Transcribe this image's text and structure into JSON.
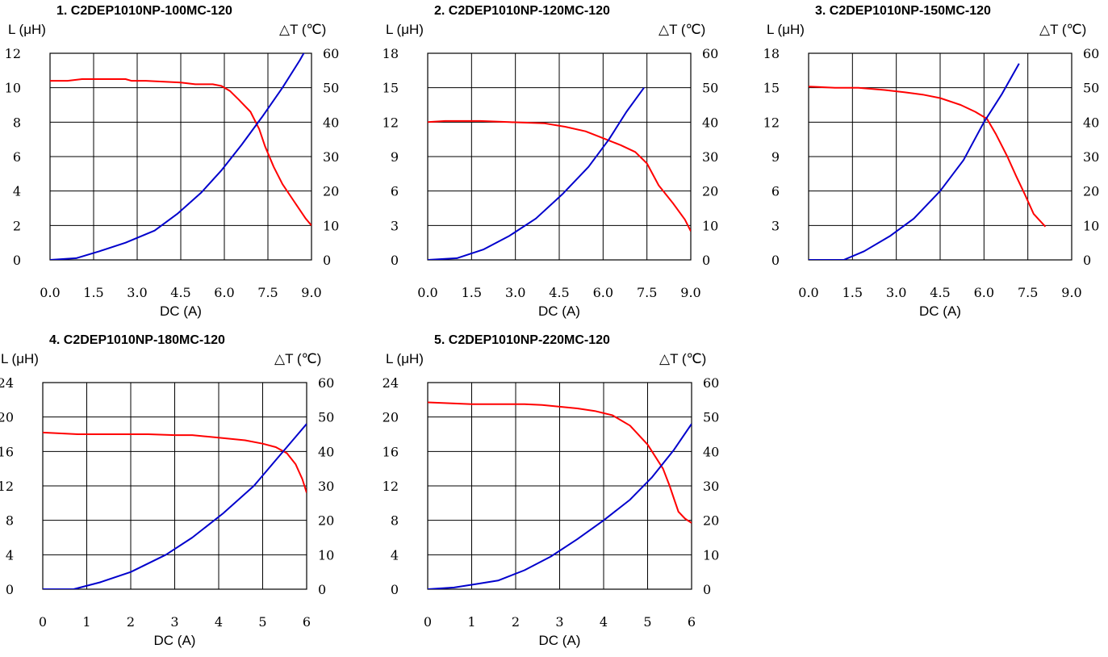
{
  "colors": {
    "inductance": "#ff0000",
    "temperature": "#0000cc",
    "grid": "#000000"
  },
  "chart_data": [
    {
      "type": "line",
      "title": "1. C2DEP1010NP-100MC-120",
      "xlabel": "DC (A)",
      "ylabel_left": "L (μH)",
      "ylabel_right": "△T (℃)",
      "xlim": [
        0,
        9
      ],
      "ylim_left": [
        0,
        12
      ],
      "ylim_right": [
        0,
        60
      ],
      "x_ticks": [
        0.0,
        1.5,
        3.0,
        4.5,
        6.0,
        7.5,
        9.0
      ],
      "x_tick_labels": [
        "0.0",
        "1.5",
        "3.0",
        "4.5",
        "6.0",
        "7.5",
        "9.0"
      ],
      "y_left_ticks": [
        0,
        2,
        4,
        6,
        8,
        10,
        12
      ],
      "y_left_tick_labels": [
        "0",
        "2",
        "4",
        "6",
        "8",
        "10",
        "12"
      ],
      "y_right_ticks": [
        0,
        10,
        20,
        30,
        40,
        50,
        60
      ],
      "y_right_tick_labels": [
        "0",
        "10",
        "20",
        "30",
        "40",
        "50",
        "60"
      ],
      "grid": true,
      "series": [
        {
          "axis": "left",
          "color": "#ff0000",
          "x": [
            0,
            0.6,
            1.1,
            2.0,
            2.6,
            2.8,
            3.3,
            4.5,
            5.0,
            5.6,
            5.9,
            6.2,
            6.5,
            6.9,
            7.2,
            7.4,
            7.7,
            8.0,
            8.4,
            8.8,
            9.0
          ],
          "y": [
            10.4,
            10.4,
            10.5,
            10.5,
            10.5,
            10.4,
            10.4,
            10.3,
            10.2,
            10.2,
            10.1,
            9.8,
            9.3,
            8.6,
            7.6,
            6.6,
            5.4,
            4.4,
            3.4,
            2.4,
            2.0
          ]
        },
        {
          "axis": "right",
          "color": "#0000cc",
          "x": [
            0,
            0.9,
            1.7,
            2.6,
            3.6,
            4.4,
            5.2,
            5.9,
            6.6,
            7.3,
            8.0,
            8.6,
            9.0
          ],
          "y": [
            0,
            0.5,
            2.5,
            5,
            8.5,
            13.5,
            19.5,
            26,
            33.5,
            41.5,
            50,
            58,
            64
          ]
        }
      ]
    },
    {
      "type": "line",
      "title": "2. C2DEP1010NP-120MC-120",
      "xlabel": "DC (A)",
      "ylabel_left": "L (μH)",
      "ylabel_right": "△T (℃)",
      "xlim": [
        0,
        9
      ],
      "ylim_left": [
        0,
        18
      ],
      "ylim_right": [
        0,
        60
      ],
      "x_ticks": [
        0.0,
        1.5,
        3.0,
        4.5,
        6.0,
        7.5,
        9.0
      ],
      "x_tick_labels": [
        "0.0",
        "1.5",
        "3.0",
        "4.5",
        "6.0",
        "7.5",
        "9.0"
      ],
      "y_left_ticks": [
        0,
        3,
        6,
        9,
        12,
        15,
        18
      ],
      "y_left_tick_labels": [
        "0",
        "3",
        "6",
        "9",
        "12",
        "15",
        "18"
      ],
      "y_right_ticks": [
        0,
        10,
        20,
        30,
        40,
        50,
        60
      ],
      "y_right_tick_labels": [
        "0",
        "10",
        "20",
        "30",
        "40",
        "50",
        "60"
      ],
      "grid": true,
      "series": [
        {
          "axis": "left",
          "color": "#ff0000",
          "x": [
            0,
            0.6,
            1.8,
            2.8,
            4.0,
            4.7,
            5.4,
            6.0,
            6.6,
            7.1,
            7.5,
            7.9,
            8.4,
            8.8,
            9.0
          ],
          "y": [
            12.0,
            12.1,
            12.1,
            12.0,
            11.9,
            11.6,
            11.2,
            10.6,
            10.0,
            9.4,
            8.4,
            6.5,
            4.9,
            3.5,
            2.5
          ]
        },
        {
          "axis": "right",
          "color": "#0000cc",
          "x": [
            0,
            1.0,
            1.9,
            2.8,
            3.7,
            4.6,
            5.5,
            6.2,
            6.8,
            7.4
          ],
          "y": [
            0,
            0.5,
            3,
            7,
            12,
            19,
            27,
            35,
            43,
            50
          ]
        }
      ]
    },
    {
      "type": "line",
      "title": "3. C2DEP1010NP-150MC-120",
      "xlabel": "DC (A)",
      "ylabel_left": "L (μH)",
      "ylabel_right": "△T (℃)",
      "xlim": [
        0,
        9
      ],
      "ylim_left": [
        0,
        18
      ],
      "ylim_right": [
        0,
        60
      ],
      "x_ticks": [
        0.0,
        1.5,
        3.0,
        4.5,
        6.0,
        7.5,
        9.0
      ],
      "x_tick_labels": [
        "0.0",
        "1.5",
        "3.0",
        "4.5",
        "6.0",
        "7.5",
        "9.0"
      ],
      "y_left_ticks": [
        0,
        3,
        6,
        9,
        12,
        15,
        18
      ],
      "y_left_tick_labels": [
        "0",
        "3",
        "6",
        "9",
        "12",
        "15",
        "18"
      ],
      "y_right_ticks": [
        0,
        10,
        20,
        30,
        40,
        50,
        60
      ],
      "y_right_tick_labels": [
        "0",
        "10",
        "20",
        "30",
        "40",
        "50",
        "60"
      ],
      "grid": true,
      "series": [
        {
          "axis": "left",
          "color": "#ff0000",
          "x": [
            0,
            0.9,
            1.7,
            2.6,
            3.3,
            3.9,
            4.5,
            5.2,
            5.7,
            6.1,
            6.4,
            6.8,
            7.1,
            7.4,
            7.7,
            8.1
          ],
          "y": [
            15.1,
            15.0,
            15.0,
            14.8,
            14.6,
            14.4,
            14.1,
            13.5,
            12.9,
            12.3,
            11.0,
            9.0,
            7.3,
            5.7,
            4.0,
            2.9
          ]
        },
        {
          "axis": "right",
          "color": "#0000cc",
          "x": [
            0,
            1.2,
            1.9,
            2.8,
            3.6,
            4.5,
            5.3,
            6.0,
            6.6,
            7.2
          ],
          "y": [
            0,
            0,
            2.5,
            7,
            12,
            20,
            29,
            40,
            48,
            57
          ]
        }
      ]
    },
    {
      "type": "line",
      "title": "4. C2DEP1010NP-180MC-120",
      "xlabel": "DC (A)",
      "ylabel_left": "L (μH)",
      "ylabel_right": "△T (℃)",
      "xlim": [
        0,
        6
      ],
      "ylim_left": [
        0,
        24
      ],
      "ylim_right": [
        0,
        60
      ],
      "x_ticks": [
        0,
        1,
        2,
        3,
        4,
        5,
        6
      ],
      "x_tick_labels": [
        "0",
        "1",
        "2",
        "3",
        "4",
        "5",
        "6"
      ],
      "y_left_ticks": [
        0,
        4,
        8,
        12,
        16,
        20,
        24
      ],
      "y_left_tick_labels": [
        "0",
        "4",
        "8",
        "12",
        "16",
        "20",
        "24"
      ],
      "y_right_ticks": [
        0,
        10,
        20,
        30,
        40,
        50,
        60
      ],
      "y_right_tick_labels": [
        "0",
        "10",
        "20",
        "30",
        "40",
        "50",
        "60"
      ],
      "grid": true,
      "series": [
        {
          "axis": "left",
          "color": "#ff0000",
          "x": [
            0,
            0.8,
            1.6,
            2.4,
            3.0,
            3.4,
            4.0,
            4.6,
            5.0,
            5.3,
            5.55,
            5.75,
            5.9,
            6.0
          ],
          "y": [
            18.2,
            18.0,
            18.0,
            18.0,
            17.9,
            17.9,
            17.6,
            17.3,
            16.9,
            16.5,
            15.8,
            14.5,
            12.8,
            11.2
          ]
        },
        {
          "axis": "right",
          "color": "#0000cc",
          "x": [
            0,
            0.7,
            1.3,
            2.0,
            2.8,
            3.4,
            4.1,
            4.8,
            5.3,
            5.8,
            6.0
          ],
          "y": [
            0,
            0,
            2,
            5,
            10,
            15,
            22,
            30,
            37.5,
            45,
            48
          ]
        }
      ]
    },
    {
      "type": "line",
      "title": "5. C2DEP1010NP-220MC-120",
      "xlabel": "DC (A)",
      "ylabel_left": "L (μH)",
      "ylabel_right": "△T (℃)",
      "xlim": [
        0,
        6
      ],
      "ylim_left": [
        0,
        24
      ],
      "ylim_right": [
        0,
        60
      ],
      "x_ticks": [
        0,
        1,
        2,
        3,
        4,
        5,
        6
      ],
      "x_tick_labels": [
        "0",
        "1",
        "2",
        "3",
        "4",
        "5",
        "6"
      ],
      "y_left_ticks": [
        0,
        4,
        8,
        12,
        16,
        20,
        24
      ],
      "y_left_tick_labels": [
        "0",
        "4",
        "8",
        "12",
        "16",
        "20",
        "24"
      ],
      "y_right_ticks": [
        0,
        10,
        20,
        30,
        40,
        50,
        60
      ],
      "y_right_tick_labels": [
        "0",
        "10",
        "20",
        "30",
        "40",
        "50",
        "60"
      ],
      "grid": true,
      "series": [
        {
          "axis": "left",
          "color": "#ff0000",
          "x": [
            0,
            1.0,
            2.2,
            2.6,
            3.0,
            3.4,
            3.8,
            4.2,
            4.6,
            5.0,
            5.35,
            5.5,
            5.6,
            5.7,
            5.85,
            6.0
          ],
          "y": [
            21.7,
            21.5,
            21.5,
            21.4,
            21.2,
            21.0,
            20.7,
            20.2,
            19.0,
            16.8,
            14.0,
            12.0,
            10.5,
            9.0,
            8.2,
            7.7
          ]
        },
        {
          "axis": "right",
          "color": "#0000cc",
          "x": [
            0,
            0.6,
            1.1,
            1.6,
            2.2,
            2.8,
            3.4,
            4.0,
            4.6,
            5.1,
            5.6,
            6.0
          ],
          "y": [
            0,
            0.5,
            1.5,
            2.5,
            5.5,
            9.5,
            14.5,
            20,
            26,
            32.5,
            40.5,
            48
          ]
        }
      ]
    }
  ]
}
